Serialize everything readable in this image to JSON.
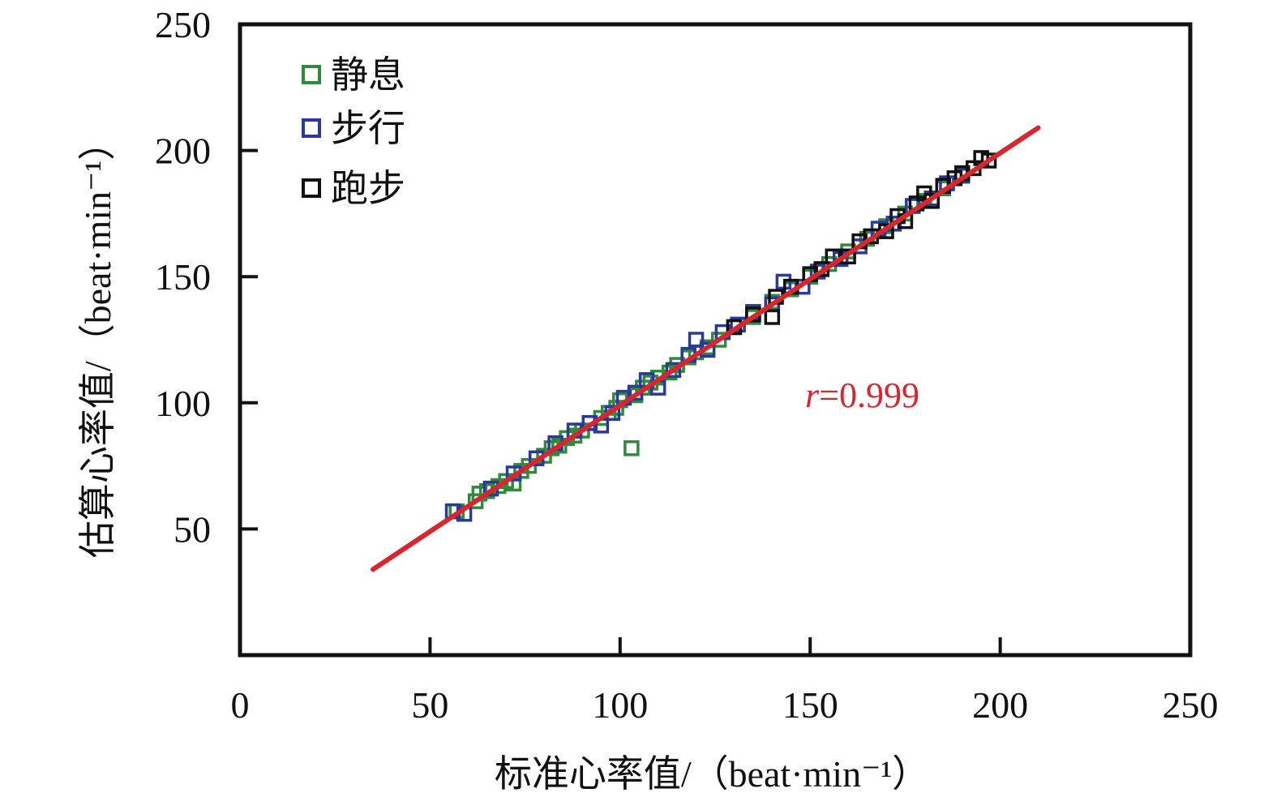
{
  "chart_data": {
    "type": "scatter",
    "xlabel": "标准心率值/（beat·min⁻¹）",
    "ylabel": "估算心率值/（beat·min⁻¹）",
    "xlim": [
      0,
      250
    ],
    "ylim": [
      0,
      250
    ],
    "x_ticks": [
      0,
      50,
      100,
      150,
      200,
      250
    ],
    "y_ticks": [
      50,
      100,
      150,
      200,
      250
    ],
    "legend_position": "top-left",
    "grid": false,
    "series": [
      {
        "name": "静息",
        "color": "#2e8b3a",
        "marker": "open-square",
        "points": [
          [
            57,
            57
          ],
          [
            62,
            61
          ],
          [
            63,
            64
          ],
          [
            65,
            65
          ],
          [
            68,
            67
          ],
          [
            70,
            69
          ],
          [
            72,
            68
          ],
          [
            74,
            73
          ],
          [
            76,
            75
          ],
          [
            78,
            78
          ],
          [
            80,
            79
          ],
          [
            82,
            82
          ],
          [
            84,
            83
          ],
          [
            86,
            86
          ],
          [
            88,
            87
          ],
          [
            90,
            89
          ],
          [
            92,
            92
          ],
          [
            95,
            94
          ],
          [
            97,
            96
          ],
          [
            99,
            98
          ],
          [
            100,
            101
          ],
          [
            103,
            82
          ],
          [
            104,
            103
          ],
          [
            106,
            106
          ],
          [
            108,
            108
          ],
          [
            110,
            110
          ],
          [
            113,
            112
          ],
          [
            115,
            115
          ],
          [
            118,
            118
          ],
          [
            120,
            120
          ],
          [
            123,
            122
          ],
          [
            126,
            125
          ],
          [
            130,
            130
          ],
          [
            135,
            134
          ],
          [
            140,
            140
          ],
          [
            145,
            145
          ],
          [
            150,
            150
          ],
          [
            155,
            155
          ],
          [
            160,
            160
          ],
          [
            165,
            165
          ],
          [
            170,
            170
          ],
          [
            175,
            175
          ],
          [
            180,
            180
          ],
          [
            185,
            185
          ],
          [
            190,
            190
          ]
        ]
      },
      {
        "name": "步行",
        "color": "#2a3a9a",
        "marker": "open-square",
        "points": [
          [
            56,
            57
          ],
          [
            59,
            56
          ],
          [
            66,
            66
          ],
          [
            72,
            72
          ],
          [
            78,
            78
          ],
          [
            83,
            84
          ],
          [
            88,
            89
          ],
          [
            92,
            92
          ],
          [
            95,
            91
          ],
          [
            98,
            96
          ],
          [
            101,
            102
          ],
          [
            104,
            104
          ],
          [
            107,
            109
          ],
          [
            110,
            106
          ],
          [
            114,
            113
          ],
          [
            118,
            119
          ],
          [
            120,
            125
          ],
          [
            123,
            121
          ],
          [
            127,
            128
          ],
          [
            131,
            131
          ],
          [
            135,
            136
          ],
          [
            140,
            139
          ],
          [
            143,
            148
          ],
          [
            148,
            146
          ],
          [
            152,
            152
          ],
          [
            158,
            157
          ],
          [
            163,
            162
          ],
          [
            168,
            169
          ],
          [
            172,
            171
          ],
          [
            177,
            178
          ],
          [
            182,
            181
          ],
          [
            186,
            187
          ],
          [
            190,
            190
          ]
        ]
      },
      {
        "name": "跑步",
        "color": "#111111",
        "marker": "open-square",
        "points": [
          [
            130,
            130
          ],
          [
            135,
            135
          ],
          [
            140,
            134
          ],
          [
            141,
            142
          ],
          [
            145,
            146
          ],
          [
            150,
            151
          ],
          [
            153,
            153
          ],
          [
            156,
            158
          ],
          [
            160,
            158
          ],
          [
            163,
            164
          ],
          [
            166,
            166
          ],
          [
            170,
            168
          ],
          [
            173,
            174
          ],
          [
            175,
            172
          ],
          [
            178,
            179
          ],
          [
            180,
            183
          ],
          [
            182,
            180
          ],
          [
            185,
            186
          ],
          [
            188,
            189
          ],
          [
            190,
            191
          ],
          [
            193,
            193
          ],
          [
            195,
            197
          ],
          [
            197,
            196
          ]
        ]
      }
    ],
    "fit_line": {
      "color": "#d7262d",
      "from": [
        35,
        34
      ],
      "to": [
        210,
        209
      ]
    },
    "annotation": {
      "italic": "r",
      "text": "=0.999"
    }
  }
}
